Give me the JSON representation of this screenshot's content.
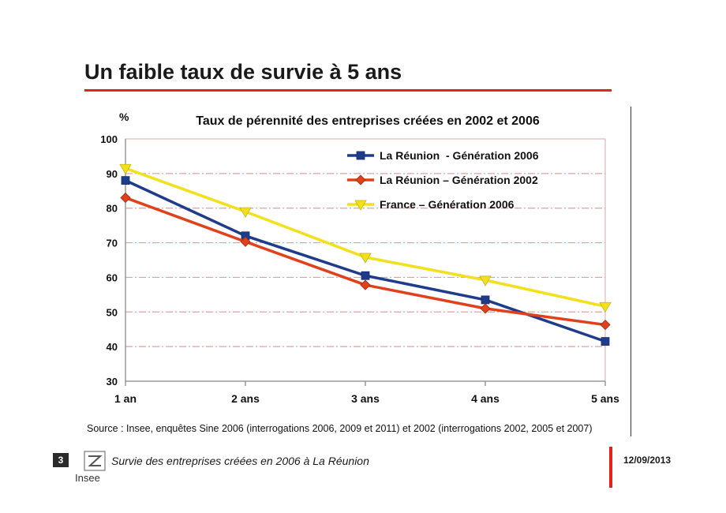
{
  "slide": {
    "title": "Un faible taux de survie à 5 ans",
    "source": "Source : Insee, enquêtes Sine 2006 (interrogations 2006, 2009 et 2011) et 2002 (interrogations 2002, 2005 et 2007)"
  },
  "footer": {
    "page_number": "3",
    "logo_text": "Insee",
    "subtitle": "Survie des entreprises créées en 2006 à La Réunion",
    "date": "12/09/2013"
  },
  "colors": {
    "accent": "#e2231a",
    "series_1": "#1f3c8c",
    "series_2": "#e0401a",
    "series_3": "#f2e01c",
    "gridline": "#e0a0a0"
  },
  "chart_data": {
    "type": "line",
    "title": "Taux de pérennité des entreprises créées en 2002 et 2006",
    "ylabel": "%",
    "xlabel": "",
    "categories": [
      "1 an",
      "2 ans",
      "3 ans",
      "4 ans",
      "5 ans"
    ],
    "ylim": [
      30,
      100
    ],
    "yticks": [
      30,
      40,
      50,
      60,
      70,
      80,
      90,
      100
    ],
    "grid": true,
    "legend_position": "top-right",
    "series": [
      {
        "name": "La Réunion  - Génération 2006",
        "values": [
          88,
          72,
          60.5,
          53.5,
          41.5
        ],
        "marker": "square",
        "color": "#1f3c8c"
      },
      {
        "name": "La Réunion – Génération 2002",
        "values": [
          83,
          70.3,
          57.8,
          51,
          46.3
        ],
        "marker": "diamond",
        "color": "#e0401a"
      },
      {
        "name": "France – Génération 2006",
        "values": [
          91.5,
          79,
          65.8,
          59.2,
          51.6
        ],
        "marker": "triangle-down",
        "color": "#f2e01c"
      }
    ]
  }
}
